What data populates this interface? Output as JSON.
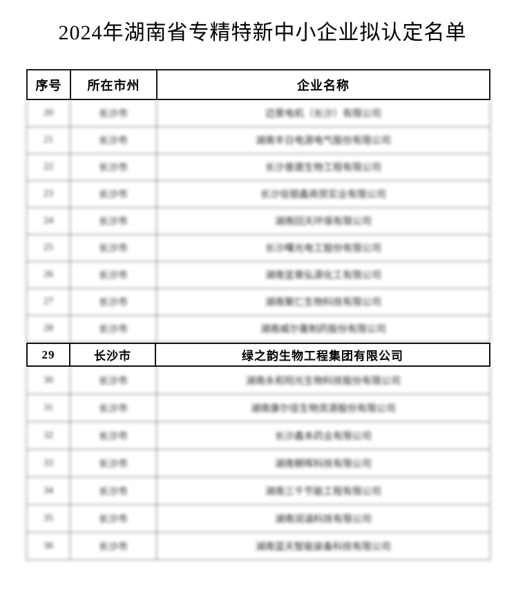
{
  "page": {
    "title": "2024年湖南省专精特新中小企业拟认定名单"
  },
  "colors": {
    "background": "#ffffff",
    "text": "#000000",
    "border_strong": "#1a1a1a",
    "border_blurred": "#6a6a6a"
  },
  "table": {
    "columns": [
      {
        "key": "index",
        "label": "序号"
      },
      {
        "key": "city",
        "label": "所在市州"
      },
      {
        "key": "company",
        "label": "企业名称"
      }
    ],
    "highlight_row_number": "29",
    "rows": [
      {
        "index": "20",
        "city": "长沙市",
        "company": "迈景电机（长沙）有限公司",
        "blurred": true
      },
      {
        "index": "21",
        "city": "长沙市",
        "company": "湖南丰日电源电气股份有限公司",
        "blurred": true
      },
      {
        "index": "22",
        "city": "长沙市",
        "company": "长沙普晟生物工程有限公司",
        "blurred": true
      },
      {
        "index": "23",
        "city": "长沙市",
        "company": "长沙信银鑫商贸实业有限公司",
        "blurred": true
      },
      {
        "index": "24",
        "city": "长沙市",
        "company": "湖南回天环保有限公司",
        "blurred": true
      },
      {
        "index": "25",
        "city": "长沙市",
        "company": "长沙曙光电工股份有限公司",
        "blurred": true
      },
      {
        "index": "26",
        "city": "长沙市",
        "company": "湖南宜章弘源化工有限公司",
        "blurred": true
      },
      {
        "index": "27",
        "city": "长沙市",
        "company": "湖南聚仁生物科技有限公司",
        "blurred": true
      },
      {
        "index": "28",
        "city": "长沙市",
        "company": "湖南威尔曼制药股份有限公司",
        "blurred": true
      },
      {
        "index": "29",
        "city": "长沙市",
        "company": "绿之韵生物工程集团有限公司",
        "blurred": false
      },
      {
        "index": "30",
        "city": "长沙市",
        "company": "湖南永和阳光生物科技股份有限公司",
        "blurred": true
      },
      {
        "index": "31",
        "city": "长沙市",
        "company": "湖南康尔佳生物资源股份有限公司",
        "blurred": true
      },
      {
        "index": "32",
        "city": "长沙市",
        "company": "长沙鑫本药业有限公司",
        "blurred": true
      },
      {
        "index": "33",
        "city": "长沙市",
        "company": "湖南朝晖科技有限公司",
        "blurred": true
      },
      {
        "index": "34",
        "city": "长沙市",
        "company": "湖南三千节能工程有限公司",
        "blurred": true
      },
      {
        "index": "35",
        "city": "长沙市",
        "company": "湖南润涵科技有限公司",
        "blurred": true
      },
      {
        "index": "36",
        "city": "长沙市",
        "company": "湖南蓝天智能装备科技有限公司",
        "blurred": true
      }
    ]
  }
}
